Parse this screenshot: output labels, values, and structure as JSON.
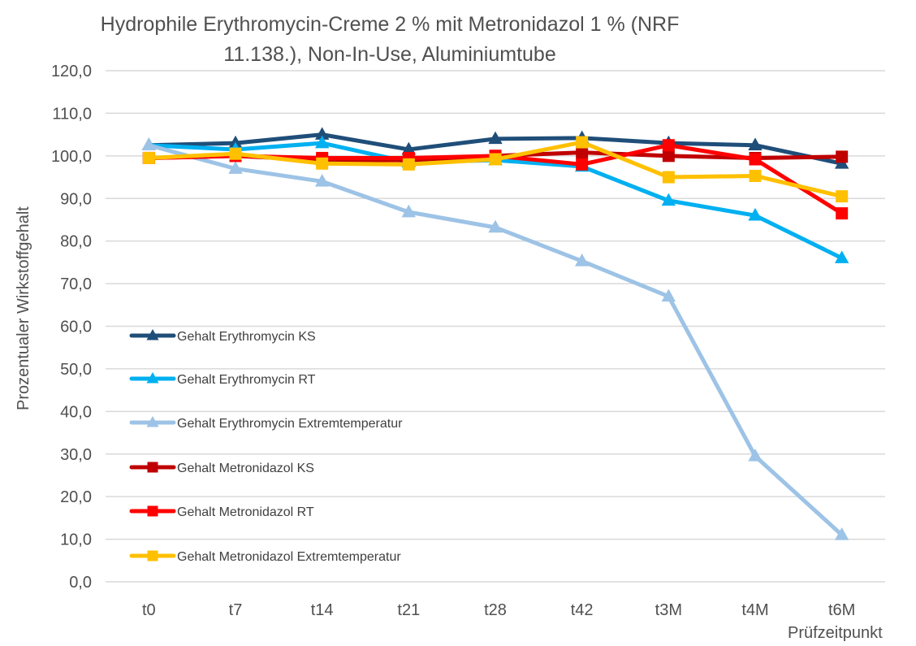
{
  "chart_data": {
    "type": "line",
    "title": [
      "Hydrophile Erythromycin-Creme 2 % mit Metronidazol 1 % (NRF",
      "11.138.), Non-In-Use, Aluminiumtube"
    ],
    "xlabel": "Prüfzeitpunkt",
    "ylabel": "Prozentualer Wirkstoffgehalt",
    "ylim": [
      0,
      120
    ],
    "y_ticks": [
      "0,0",
      "10,0",
      "20,0",
      "30,0",
      "40,0",
      "50,0",
      "60,0",
      "70,0",
      "80,0",
      "90,0",
      "100,0",
      "110,0",
      "120,0"
    ],
    "y_tick_values": [
      0,
      10,
      20,
      30,
      40,
      50,
      60,
      70,
      80,
      90,
      100,
      110,
      120
    ],
    "grid": true,
    "legend_position": "left-inside",
    "categories": [
      "t0",
      "t7",
      "t14",
      "t21",
      "t28",
      "t42",
      "t3M",
      "t4M",
      "t6M"
    ],
    "series": [
      {
        "name": "Gehalt Erythromycin KS",
        "color": "#1f4e79",
        "marker": "triangle",
        "values": [
          102.5,
          103.0,
          105.0,
          101.5,
          104.0,
          104.2,
          103.0,
          102.5,
          98.2
        ]
      },
      {
        "name": "Gehalt Erythromycin RT",
        "color": "#00b0f0",
        "marker": "triangle",
        "values": [
          102.5,
          101.5,
          103.0,
          98.5,
          99.0,
          97.5,
          89.5,
          86.0,
          76.0
        ]
      },
      {
        "name": "Gehalt Erythromycin Extremtemperatur",
        "color": "#9dc3e6",
        "marker": "triangle",
        "values": [
          102.5,
          97.0,
          94.0,
          86.8,
          83.2,
          75.3,
          67.0,
          29.5,
          11.0
        ]
      },
      {
        "name": "Gehalt Metronidazol KS",
        "color": "#c00000",
        "marker": "square",
        "values": [
          99.5,
          100.0,
          99.0,
          99.0,
          100.0,
          100.8,
          100.0,
          99.5,
          99.8
        ]
      },
      {
        "name": "Gehalt Metronidazol RT",
        "color": "#ff0000",
        "marker": "square",
        "values": [
          99.5,
          100.0,
          99.5,
          99.5,
          100.0,
          98.0,
          102.5,
          99.2,
          86.5
        ]
      },
      {
        "name": "Gehalt Metronidazol Extremtemperatur",
        "color": "#ffc000",
        "marker": "square",
        "values": [
          99.5,
          100.5,
          98.2,
          98.0,
          99.2,
          103.2,
          95.0,
          95.3,
          90.5
        ]
      }
    ]
  }
}
